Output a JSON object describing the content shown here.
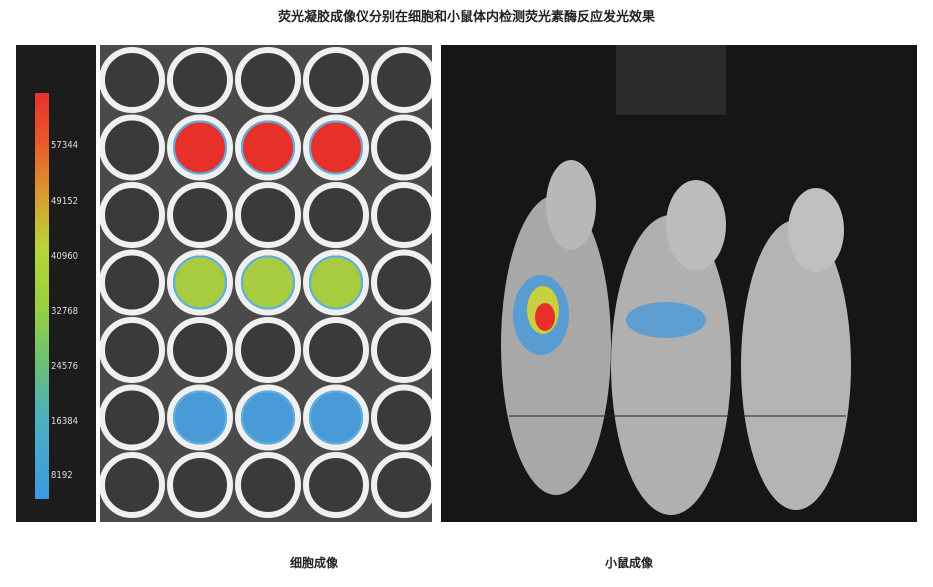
{
  "title": "荧光凝胶成像仪分别在细胞和小鼠体内检测荧光素酶反应发光效果",
  "colorbar": {
    "ticks": [
      "57344",
      "49152",
      "40960",
      "32768",
      "24576",
      "16384",
      "8192"
    ],
    "colors": [
      "#e8302a",
      "#b7d43a",
      "#3a9ae0"
    ]
  },
  "plate": {
    "rows": 7,
    "cols": 5,
    "signal_rows": [
      {
        "row": 2,
        "cols": [
          2,
          3,
          4
        ],
        "color": "#e8302a"
      },
      {
        "row": 4,
        "cols": [
          2,
          3,
          4
        ],
        "color": "#a8cc40"
      },
      {
        "row": 6,
        "cols": [
          2,
          3,
          4
        ],
        "color": "#4a9ad8"
      }
    ]
  },
  "captions": {
    "cells": "细胞成像",
    "mice": "小鼠成像"
  }
}
